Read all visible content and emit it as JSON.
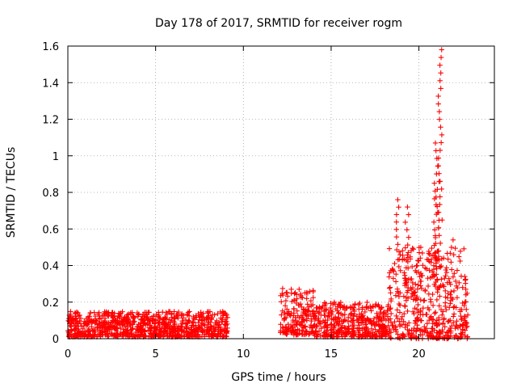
{
  "chart_data": {
    "type": "scatter",
    "title": "Day 178 of 2017, SRMTID for receiver rogm",
    "xlabel": "GPS time / hours",
    "ylabel": "SRMTID / TECUs",
    "xlim": [
      0,
      24.3
    ],
    "ylim": [
      0,
      1.6
    ],
    "x_ticks": [
      0,
      5,
      10,
      15,
      20
    ],
    "y_ticks": [
      0,
      0.2,
      0.4,
      0.6,
      0.8,
      1,
      1.2,
      1.4,
      1.6
    ],
    "x_tick_labels": [
      "0",
      "5",
      "10",
      "15",
      "20"
    ],
    "y_tick_labels": [
      "0",
      "0.2",
      "0.4",
      "0.6",
      "0.8",
      "1",
      "1.2",
      "1.4",
      "1.6"
    ],
    "grid": true,
    "marker": "+",
    "color": "#ff0000",
    "series": [
      {
        "name": "SRMTID",
        "segments": [
          {
            "x_range": [
              0.0,
              9.1
            ],
            "y_range": [
              0.01,
              0.15
            ],
            "approx_points": 900
          },
          {
            "x_range": [
              12.1,
              14.0
            ],
            "y_range": [
              0.02,
              0.28
            ],
            "approx_points": 180
          },
          {
            "x_range": [
              14.0,
              18.3
            ],
            "y_range": [
              0.01,
              0.2
            ],
            "approx_points": 420
          },
          {
            "x_range": [
              18.3,
              22.8
            ],
            "y_range": [
              0.0,
              0.5
            ],
            "approx_points": 420
          }
        ],
        "peaks": [
          {
            "x": 18.8,
            "y": 0.76
          },
          {
            "x": 19.3,
            "y": 0.72
          },
          {
            "x": 20.0,
            "y": 0.4
          },
          {
            "x": 20.6,
            "y": 0.46
          },
          {
            "x": 20.95,
            "y": 0.85
          },
          {
            "x": 21.05,
            "y": 1.07
          },
          {
            "x": 21.2,
            "y": 1.58
          },
          {
            "x": 21.9,
            "y": 0.54
          },
          {
            "x": 22.6,
            "y": 0.32
          }
        ]
      }
    ]
  }
}
